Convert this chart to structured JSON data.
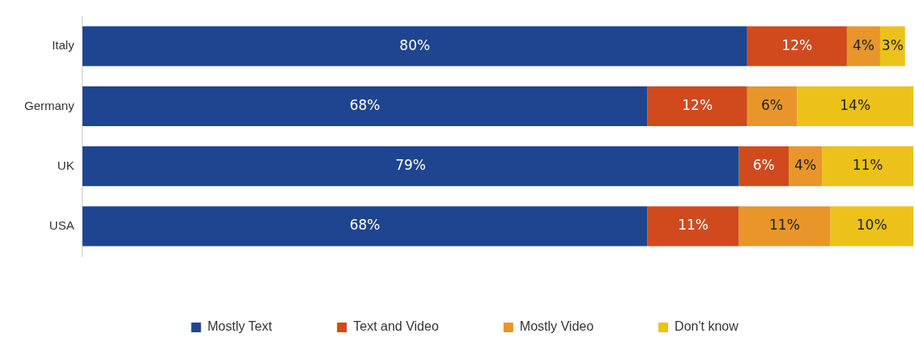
{
  "chart_data": {
    "type": "bar",
    "orientation": "horizontal",
    "stacked": true,
    "categories": [
      "Italy",
      "Germany",
      "UK",
      "USA"
    ],
    "series": [
      {
        "name": "Mostly Text",
        "color": "#1f4590",
        "values": [
          80,
          68,
          79,
          68
        ],
        "value_labels": [
          "80%",
          "68%",
          "79%",
          "68%"
        ]
      },
      {
        "name": "Text and Video",
        "color": "#d04a1e",
        "values": [
          12,
          12,
          6,
          11
        ],
        "value_labels": [
          "12%",
          "12%",
          "6%",
          "11%"
        ]
      },
      {
        "name": "Mostly Video",
        "color": "#e8962a",
        "values": [
          4,
          6,
          4,
          11
        ],
        "value_labels": [
          "4%",
          "6%",
          "4%",
          "11%"
        ]
      },
      {
        "name": "Don't know",
        "color": "#ecc21a",
        "values": [
          3,
          14,
          11,
          10
        ],
        "value_labels": [
          "3%",
          "14%",
          "11%",
          "10%"
        ]
      }
    ],
    "tick_labels": "y",
    "legend": "bottom"
  }
}
